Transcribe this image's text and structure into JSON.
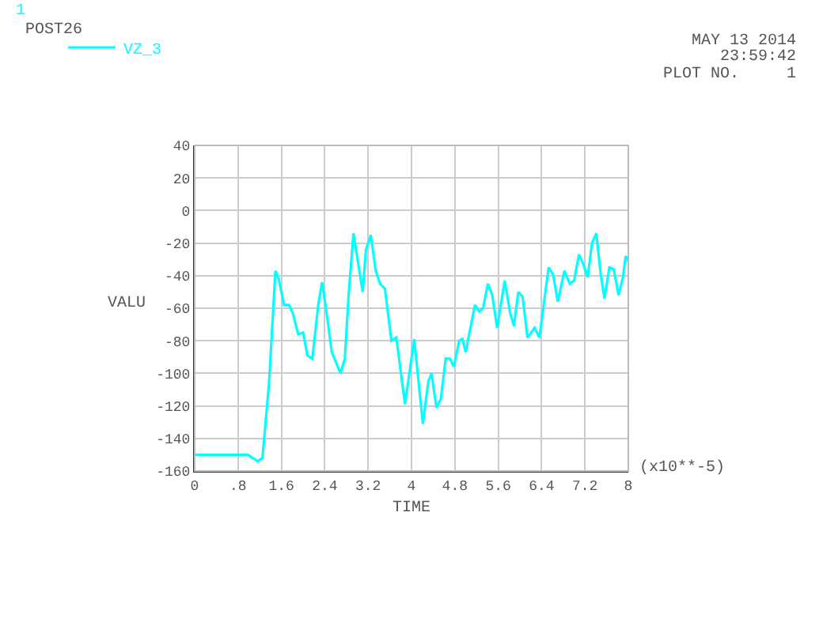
{
  "chart_data": {
    "type": "line",
    "xlabel": "TIME",
    "ylabel": "VALU",
    "annotations": [
      "1",
      "POST26",
      "MAY 13 2014",
      "23:59:42",
      "PLOT NO.     1",
      "(x10**-5)"
    ],
    "xlim": [
      0,
      8
    ],
    "xticks": [
      0,
      {
        "value": 0.8,
        "label": ".8"
      },
      1.6,
      2.4,
      3.2,
      4,
      4.8,
      5.6,
      6.4,
      7.2,
      8
    ],
    "ylim": [
      -160,
      40
    ],
    "yticks": [
      -160,
      -140,
      -120,
      -100,
      -80,
      -60,
      -40,
      -20,
      0,
      20,
      40
    ],
    "grid": true,
    "legend": "top left",
    "marker": "none",
    "line_style": "solid",
    "series": [
      {
        "name": "VZ_3",
        "color": "#00ffff",
        "x": [
          0,
          0.98,
          1.16,
          1.25,
          1.37,
          1.49,
          1.55,
          1.65,
          1.74,
          1.81,
          1.91,
          2.0,
          2.08,
          2.17,
          2.28,
          2.35,
          2.43,
          2.53,
          2.69,
          2.77,
          2.84,
          2.93,
          3.01,
          3.1,
          3.16,
          3.25,
          3.34,
          3.42,
          3.51,
          3.63,
          3.72,
          3.88,
          4.05,
          4.21,
          4.31,
          4.37,
          4.46,
          4.54,
          4.63,
          4.71,
          4.78,
          4.88,
          4.94,
          5.0,
          5.17,
          5.25,
          5.32,
          5.41,
          5.49,
          5.58,
          5.72,
          5.82,
          5.89,
          5.97,
          6.05,
          6.14,
          6.27,
          6.36,
          6.53,
          6.61,
          6.7,
          6.82,
          6.92,
          7.0,
          7.09,
          7.17,
          7.25,
          7.33,
          7.41,
          7.49,
          7.56,
          7.65,
          7.73,
          7.82,
          7.9,
          7.95,
          8.0
        ],
        "values": [
          -150,
          -150,
          -154,
          -152,
          -107,
          -37,
          -42,
          -58,
          -58,
          -63,
          -76,
          -75,
          -89,
          -91,
          -58,
          -44,
          -62,
          -87,
          -100,
          -91,
          -52,
          -14,
          -31,
          -50,
          -24,
          -15,
          -37,
          -45,
          -48,
          -80,
          -78,
          -119,
          -79,
          -131,
          -105,
          -100,
          -121,
          -116,
          -91,
          -91,
          -96,
          -80,
          -79,
          -87,
          -58,
          -62,
          -60,
          -45,
          -52,
          -72,
          -43,
          -63,
          -71,
          -50,
          -53,
          -78,
          -72,
          -78,
          -35,
          -39,
          -56,
          -37,
          -45,
          -43,
          -27,
          -33,
          -41,
          -20,
          -14,
          -39,
          -54,
          -35,
          -36,
          -52,
          -41,
          -28,
          -31
        ]
      }
    ]
  }
}
